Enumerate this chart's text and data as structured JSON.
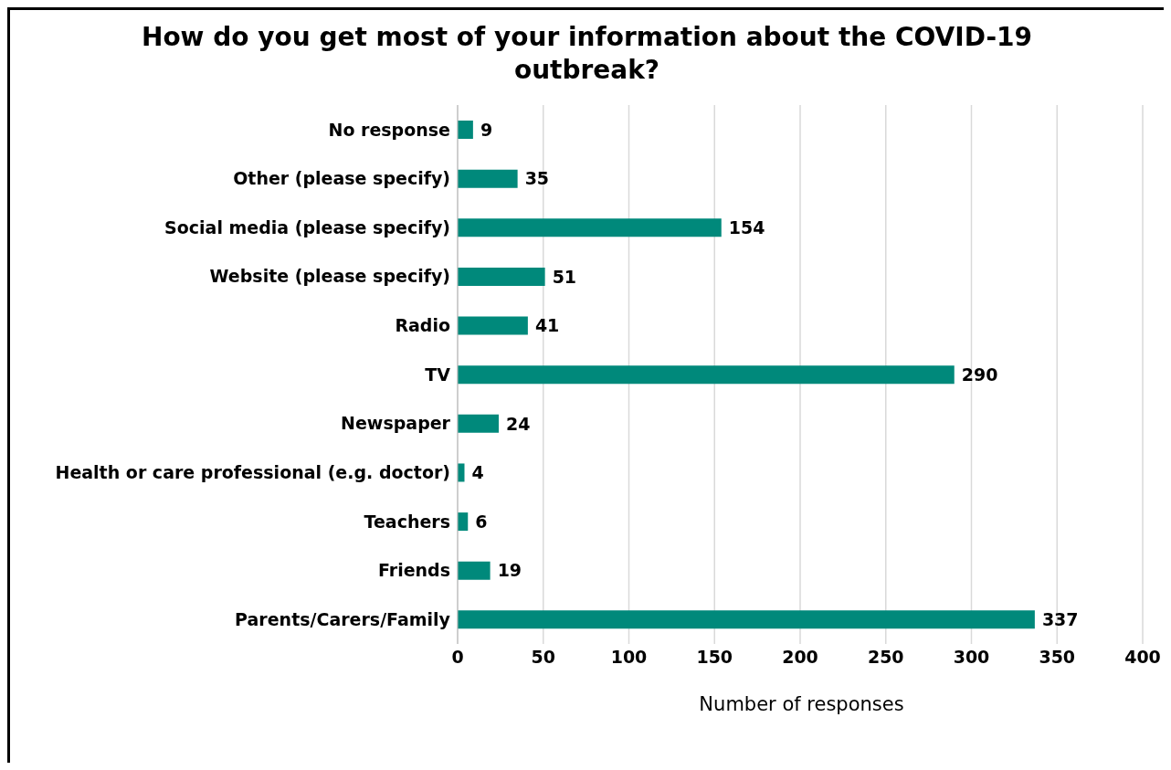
{
  "chart_data": {
    "type": "bar",
    "orientation": "horizontal",
    "title": "How do you get most of your information about the COVID-19 outbreak?",
    "xlabel": "Number of responses",
    "categories": [
      "No response",
      "Other (please specify)",
      "Social media (please specify)",
      "Website (please specify)",
      "Radio",
      "TV",
      "Newspaper",
      "Health or care professional (e.g. doctor)",
      "Teachers",
      "Friends",
      "Parents/Carers/Family"
    ],
    "values": [
      9,
      35,
      154,
      51,
      41,
      290,
      24,
      4,
      6,
      19,
      337
    ],
    "color": "#00897b",
    "xlim": [
      0,
      400
    ],
    "xticks": [
      0,
      50,
      100,
      150,
      200,
      250,
      300,
      350,
      400
    ],
    "grid": "x",
    "data_labels": true,
    "legend": false
  }
}
